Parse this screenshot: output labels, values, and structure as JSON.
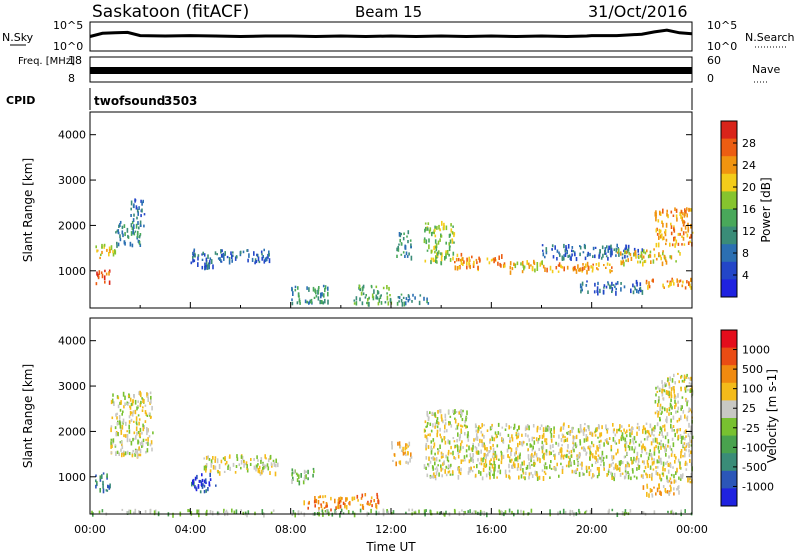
{
  "header": {
    "station": "Saskatoon (fitACF)",
    "beam": "Beam 15",
    "date": "31/Oct/2016"
  },
  "colors": {
    "power": [
      "#1f22e0",
      "#2346c8",
      "#2b6fb2",
      "#3a8c78",
      "#49a85a",
      "#86c42e",
      "#f3cc1a",
      "#f09410",
      "#ec5d12",
      "#d9241a"
    ],
    "velocity": [
      "#1f22e0",
      "#2b56b8",
      "#3a8c78",
      "#49a24e",
      "#78c130",
      "#c8c8c4",
      "#f4bb1a",
      "#f08a10",
      "#ea4c14",
      "#e40d1c"
    ]
  },
  "chart_data": [
    {
      "type": "line",
      "panel": "noise",
      "left_label": "N.Sky",
      "right_label": "N.Search",
      "left_ticks": [
        "10^5",
        "10^0"
      ],
      "right_ticks": [
        "10^5",
        "10^0"
      ],
      "ylim": [
        0,
        5
      ],
      "y_scale": "log",
      "x_range": [
        "00:00",
        "24:00"
      ],
      "series": [
        {
          "x": [
            0,
            0.5,
            1,
            1.5,
            2,
            3,
            4,
            5,
            6,
            7,
            8,
            9,
            10,
            11,
            12,
            13,
            14,
            15,
            16,
            17,
            18,
            19,
            19.8,
            20,
            21,
            22,
            22.5,
            23,
            23.5,
            24
          ],
          "values": [
            2.5,
            3.2,
            3.3,
            3.4,
            2.7,
            2.6,
            2.7,
            2.6,
            2.5,
            2.6,
            2.6,
            2.5,
            2.6,
            2.5,
            2.6,
            2.5,
            2.6,
            2.5,
            2.6,
            2.5,
            2.6,
            2.5,
            2.6,
            2.7,
            2.7,
            3.0,
            3.5,
            3.9,
            3.3,
            3.1
          ]
        }
      ]
    },
    {
      "type": "line",
      "panel": "frequency",
      "left_label": "Freq. [MHz]",
      "right_label": "Nave",
      "left_ticks": [
        "18",
        "8"
      ],
      "right_ticks": [
        "60",
        "0"
      ],
      "ylim": [
        8,
        18
      ],
      "x_range": [
        "00:00",
        "24:00"
      ],
      "series": [
        {
          "x": [
            0,
            19.7,
            19.8,
            24
          ],
          "values": [
            10.5,
            10.5,
            10.5,
            10.5
          ]
        }
      ]
    },
    {
      "type": "table",
      "panel": "cpid",
      "label": "CPID",
      "entries": [
        {
          "name": "twofsound",
          "id": "3503",
          "start": "00:00",
          "end": "24:00"
        }
      ]
    },
    {
      "type": "heatmap",
      "panel": "power",
      "ylabel": "Slant Range [km]",
      "ylim": [
        180,
        4500
      ],
      "yticks": [
        "1000",
        "2000",
        "3000",
        "4000"
      ],
      "colorbar_label": "Power [dB]",
      "colorbar_ticks": [
        "28",
        "24",
        "20",
        "16",
        "12",
        "8",
        "4"
      ],
      "zlim": [
        0,
        30
      ],
      "x_range": [
        "00:00",
        "24:00"
      ],
      "patches": [
        {
          "t": [
            0.2,
            0.8
          ],
          "r": [
            750,
            1050
          ],
          "level": 8
        },
        {
          "t": [
            0.2,
            1.0
          ],
          "r": [
            1300,
            1600
          ],
          "level": 6
        },
        {
          "t": [
            1.0,
            2.0
          ],
          "r": [
            1550,
            2100
          ],
          "level": 3
        },
        {
          "t": [
            1.6,
            2.2
          ],
          "r": [
            2000,
            2600
          ],
          "level": 2
        },
        {
          "t": [
            4.0,
            5.0
          ],
          "r": [
            1100,
            1500
          ],
          "level": 2
        },
        {
          "t": [
            5.0,
            7.2
          ],
          "r": [
            1200,
            1500
          ],
          "level": 2
        },
        {
          "t": [
            8.0,
            9.5
          ],
          "r": [
            300,
            700
          ],
          "level": 3
        },
        {
          "t": [
            10.5,
            12.0
          ],
          "r": [
            300,
            700
          ],
          "level": 4
        },
        {
          "t": [
            12.0,
            13.5
          ],
          "r": [
            300,
            500
          ],
          "level": 3
        },
        {
          "t": [
            12.2,
            12.8
          ],
          "r": [
            1300,
            1900
          ],
          "level": 3
        },
        {
          "t": [
            13.3,
            14.5
          ],
          "r": [
            1200,
            2100
          ],
          "level": 5
        },
        {
          "t": [
            14.5,
            16.5
          ],
          "r": [
            1100,
            1400
          ],
          "level": 7
        },
        {
          "t": [
            16.5,
            18.0
          ],
          "r": [
            1000,
            1250
          ],
          "level": 6
        },
        {
          "t": [
            18.0,
            21.0
          ],
          "r": [
            1000,
            1200
          ],
          "level": 7
        },
        {
          "t": [
            18.0,
            22.0
          ],
          "r": [
            1300,
            1600
          ],
          "level": 2
        },
        {
          "t": [
            21.0,
            23.5
          ],
          "r": [
            1200,
            1500
          ],
          "level": 6
        },
        {
          "t": [
            22.5,
            24.0
          ],
          "r": [
            1600,
            2400
          ],
          "level": 7
        },
        {
          "t": [
            19.5,
            22.0
          ],
          "r": [
            550,
            800
          ],
          "level": 2
        },
        {
          "t": [
            22.0,
            24.0
          ],
          "r": [
            650,
            850
          ],
          "level": 7
        }
      ]
    },
    {
      "type": "heatmap",
      "panel": "velocity",
      "ylabel": "Slant Range [km]",
      "ylim": [
        180,
        4500
      ],
      "yticks": [
        "1000",
        "2000",
        "3000",
        "4000"
      ],
      "colorbar_label": "Velocity [m s-1]",
      "colorbar_ticks": [
        "1000",
        "500",
        "100",
        "25",
        "-25",
        "-100",
        "-500",
        "-1000"
      ],
      "xlabel": "Time UT",
      "xticks": [
        "00:00",
        "04:00",
        "08:00",
        "12:00",
        "16:00",
        "20:00",
        "00:00"
      ],
      "x_range": [
        "00:00",
        "24:00"
      ],
      "patches": [
        {
          "t": [
            0.2,
            0.8
          ],
          "r": [
            700,
            1100
          ],
          "level": 2
        },
        {
          "t": [
            0.8,
            2.5
          ],
          "r": [
            1500,
            2900
          ],
          "level": 5
        },
        {
          "t": [
            4.0,
            5.0
          ],
          "r": [
            700,
            1100
          ],
          "level": 1
        },
        {
          "t": [
            4.5,
            7.5
          ],
          "r": [
            1100,
            1500
          ],
          "level": 5
        },
        {
          "t": [
            8.0,
            9.0
          ],
          "r": [
            900,
            1200
          ],
          "level": 4
        },
        {
          "t": [
            8.5,
            10.0
          ],
          "r": [
            300,
            600
          ],
          "level": 7
        },
        {
          "t": [
            10.0,
            11.5
          ],
          "r": [
            350,
            650
          ],
          "level": 7
        },
        {
          "t": [
            12.0,
            12.8
          ],
          "r": [
            1300,
            1800
          ],
          "level": 6
        },
        {
          "t": [
            13.3,
            15.0
          ],
          "r": [
            1000,
            2500
          ],
          "level": 5
        },
        {
          "t": [
            15.0,
            22.5
          ],
          "r": [
            1000,
            2200
          ],
          "level": 5
        },
        {
          "t": [
            22.5,
            24.0
          ],
          "r": [
            900,
            3300
          ],
          "level": 5
        },
        {
          "t": [
            22.0,
            23.5
          ],
          "r": [
            600,
            900
          ],
          "level": 6
        },
        {
          "t": [
            0.0,
            24.0
          ],
          "r": [
            200,
            300
          ],
          "level": 4
        }
      ]
    }
  ]
}
